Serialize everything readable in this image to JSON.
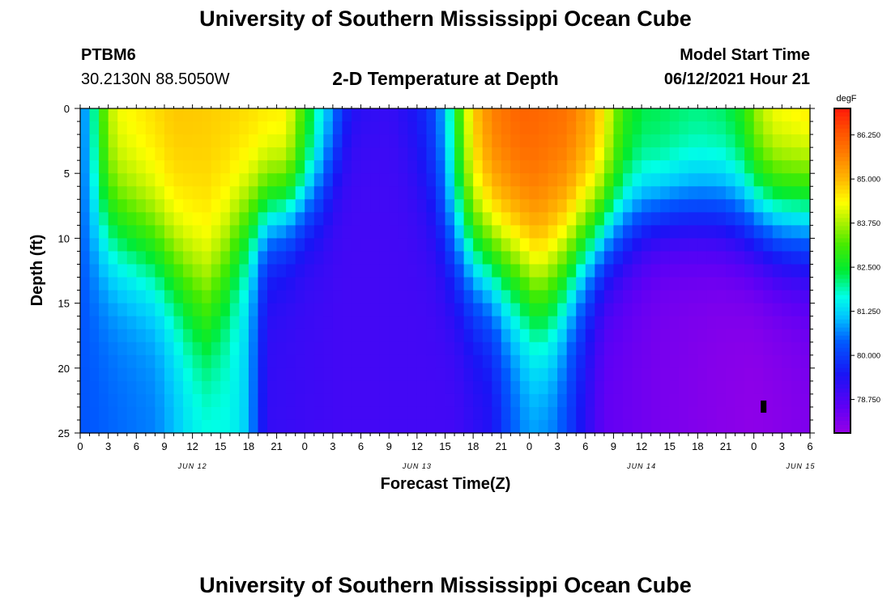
{
  "header": {
    "title": "University of Southern Mississippi Ocean Cube",
    "station_id": "PTBM6",
    "coords": "30.2130N  88.5050W",
    "plot_title": "2-D Temperature at Depth",
    "model_label": "Model Start Time",
    "model_value": "06/12/2021 Hour 21"
  },
  "footer": {
    "title": "University of Southern Mississippi Ocean Cube"
  },
  "chart_data": {
    "type": "heatmap",
    "title": "2-D Temperature at Depth",
    "xlabel": "Forecast Time(Z)",
    "ylabel": "Depth (ft)",
    "units": "degF",
    "x_range_hours": [
      0,
      78
    ],
    "x_tick_labels": [
      "0",
      "3",
      "6",
      "9",
      "12",
      "15",
      "18",
      "21",
      "0",
      "3",
      "6",
      "9",
      "12",
      "15",
      "18",
      "21",
      "0",
      "3",
      "6",
      "9",
      "12",
      "15",
      "18",
      "21",
      "0",
      "3",
      "6"
    ],
    "date_labels": [
      {
        "label": "JUN 12",
        "hour": 12
      },
      {
        "label": "JUN 13",
        "hour": 36
      },
      {
        "label": "JUN 14",
        "hour": 60
      },
      {
        "label": "JUN 15",
        "hour": 77
      }
    ],
    "y_range_ft": [
      0,
      25
    ],
    "y_ticks": [
      0,
      5,
      10,
      15,
      20,
      25
    ],
    "colorbar": {
      "min": 77.8,
      "max": 87.0,
      "tick_values": [
        86.25,
        85.0,
        83.75,
        82.5,
        81.25,
        80.0,
        78.75
      ],
      "tick_labels": [
        "86.250",
        "85.000",
        "83.750",
        "82.500",
        "81.250",
        "80.000",
        "78.750"
      ]
    },
    "field_model": {
      "surface_temp_hourly": [
        [
          0,
          80.4
        ],
        [
          1,
          81.4
        ],
        [
          2,
          82.8
        ],
        [
          3,
          83.9
        ],
        [
          4,
          84.4
        ],
        [
          10,
          84.9
        ],
        [
          16,
          84.8
        ],
        [
          22,
          84.6
        ],
        [
          24,
          83.0
        ],
        [
          25,
          82.2
        ],
        [
          26,
          81.5
        ],
        [
          27,
          80.9
        ],
        [
          28,
          80.2
        ],
        [
          29,
          79.6
        ],
        [
          33,
          79.2
        ],
        [
          36,
          79.6
        ],
        [
          38,
          80.3
        ],
        [
          39,
          81.3
        ],
        [
          40,
          82.5
        ],
        [
          41,
          83.8
        ],
        [
          42,
          84.9
        ],
        [
          44,
          85.8
        ],
        [
          47,
          86.2
        ],
        [
          52,
          86.0
        ],
        [
          55,
          85.2
        ],
        [
          57,
          83.8
        ],
        [
          58,
          83.0
        ],
        [
          60,
          82.4
        ],
        [
          66,
          82.2
        ],
        [
          69,
          82.4
        ],
        [
          71,
          83.0
        ],
        [
          72,
          83.8
        ],
        [
          74,
          84.5
        ],
        [
          78,
          84.8
        ]
      ],
      "bottom_temp_hourly": [
        [
          0,
          80.3
        ],
        [
          8,
          80.6
        ],
        [
          12,
          81.4
        ],
        [
          16,
          81.6
        ],
        [
          18,
          81.1
        ],
        [
          19,
          79.9
        ],
        [
          20,
          79.1
        ],
        [
          28,
          78.9
        ],
        [
          40,
          78.9
        ],
        [
          44,
          79.3
        ],
        [
          46,
          80.2
        ],
        [
          48,
          80.7
        ],
        [
          51,
          80.4
        ],
        [
          54,
          79.2
        ],
        [
          56,
          78.5
        ],
        [
          62,
          78.2
        ],
        [
          68,
          78.0
        ],
        [
          72,
          77.9
        ],
        [
          78,
          78.1
        ]
      ],
      "thermocline_depth_ft_hourly": [
        [
          0,
          8.0
        ],
        [
          4,
          9.5
        ],
        [
          8,
          11.0
        ],
        [
          12,
          14.0
        ],
        [
          13.5,
          15.0
        ],
        [
          15,
          13.0
        ],
        [
          17,
          9.5
        ],
        [
          20,
          8.0
        ],
        [
          23,
          7.5
        ],
        [
          26,
          6.0
        ],
        [
          28,
          3.0
        ],
        [
          30,
          0.5
        ],
        [
          32,
          0.5
        ],
        [
          34,
          2.0
        ],
        [
          36,
          5.0
        ],
        [
          39,
          9.0
        ],
        [
          42,
          11.0
        ],
        [
          45,
          12.0
        ],
        [
          47,
          12.5
        ],
        [
          49,
          14.0
        ],
        [
          50,
          13.5
        ],
        [
          52,
          12.0
        ],
        [
          54,
          10.5
        ],
        [
          56,
          9.5
        ],
        [
          60,
          8.0
        ],
        [
          64,
          7.5
        ],
        [
          68,
          7.5
        ],
        [
          72,
          8.0
        ],
        [
          75,
          8.5
        ],
        [
          78,
          8.5
        ]
      ],
      "thermocline_width_ft_hourly": [
        [
          0,
          3.0
        ],
        [
          10,
          3.0
        ],
        [
          14,
          3.5
        ],
        [
          18,
          2.5
        ],
        [
          24,
          2.0
        ],
        [
          30,
          2.5
        ],
        [
          36,
          3.0
        ],
        [
          44,
          3.0
        ],
        [
          50,
          3.5
        ],
        [
          56,
          2.5
        ],
        [
          62,
          2.0
        ],
        [
          70,
          2.5
        ],
        [
          78,
          2.8
        ]
      ],
      "time_step_hours": 1,
      "depth_step_ft": 1
    },
    "marker": {
      "hour": 73,
      "depth_ft": 23
    }
  },
  "colors": {
    "frame": "#000000",
    "marker": "#000000"
  }
}
